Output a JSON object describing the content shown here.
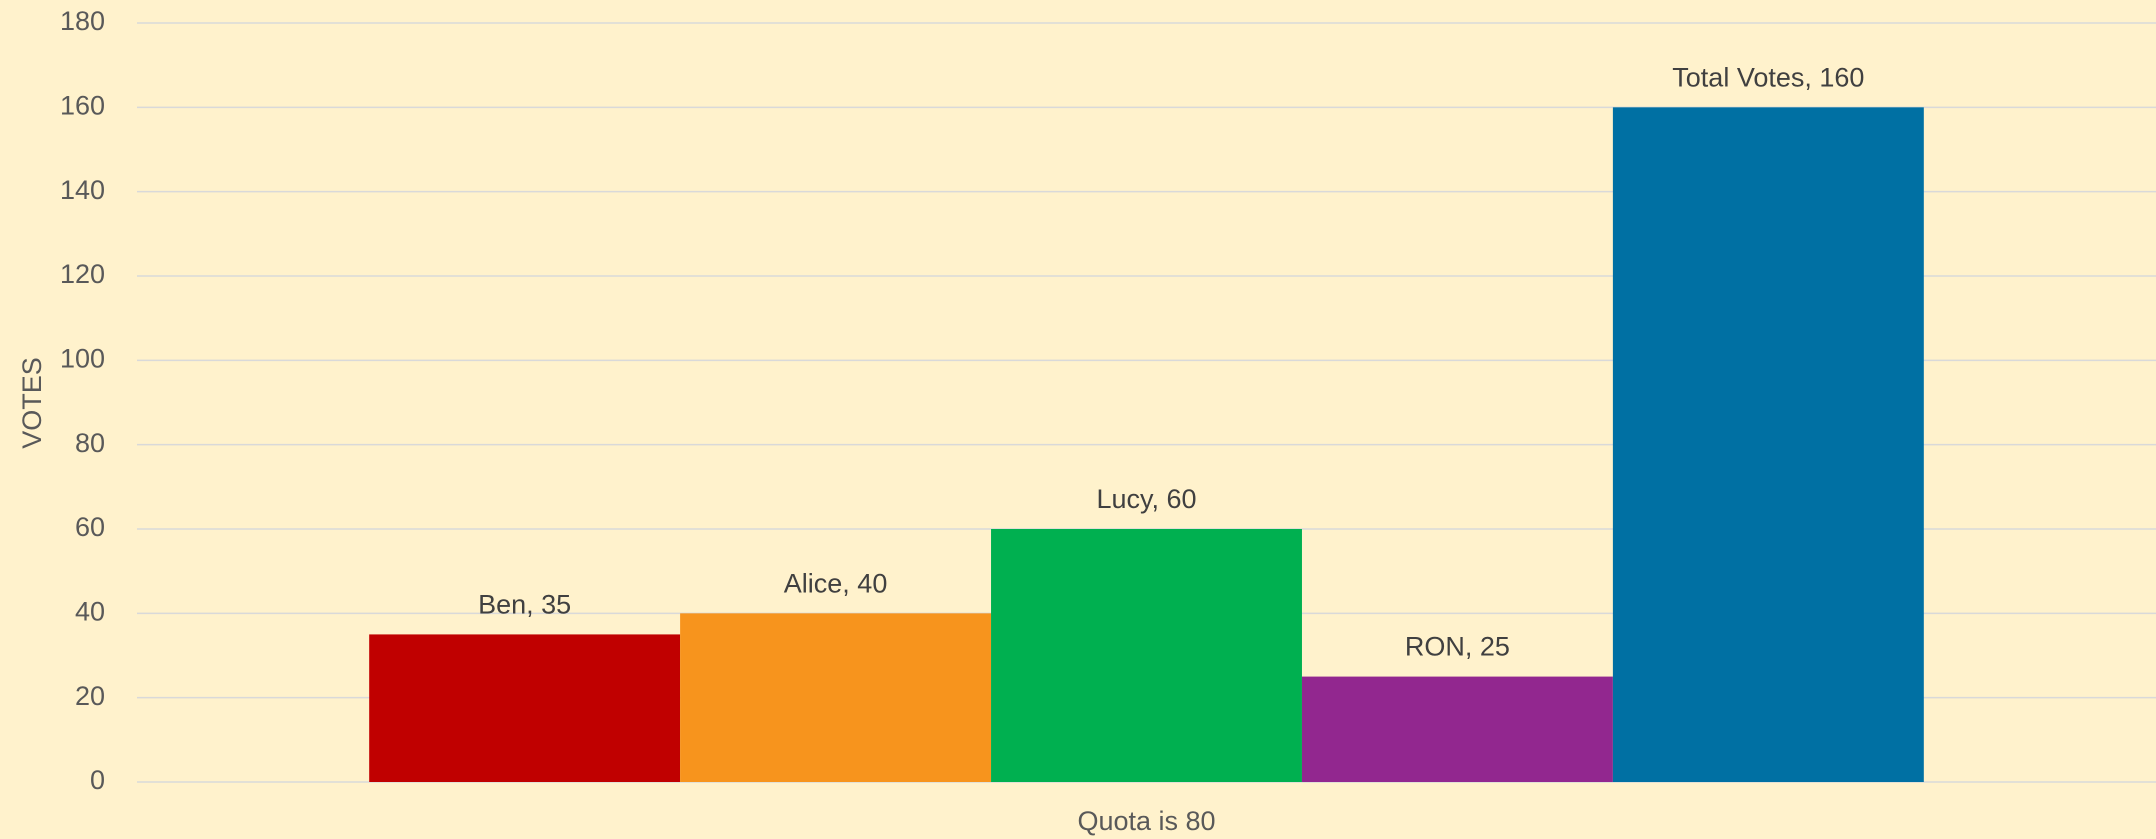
{
  "chart_data": {
    "type": "bar",
    "y_label": "VOTES",
    "categories": [
      "Quota is 80"
    ],
    "series": [
      {
        "color": "#c00000",
        "values": [
          35
        ],
        "value_labels": [
          "Ben, 35"
        ]
      },
      {
        "color": "#f7941d",
        "values": [
          40
        ],
        "value_labels": [
          "Alice, 40"
        ]
      },
      {
        "color": "#00b050",
        "values": [
          60
        ],
        "value_labels": [
          "Lucy, 60"
        ]
      },
      {
        "color": "#92278f",
        "values": [
          25
        ],
        "value_labels": [
          "RON, 25"
        ]
      },
      {
        "color": "#0070a3",
        "values": [
          160
        ],
        "value_labels": [
          "Total Votes, 160"
        ]
      }
    ],
    "ylim": [
      0,
      180
    ],
    "yticks": [
      0,
      20,
      40,
      60,
      80,
      100,
      120,
      140,
      160,
      180
    ],
    "grid": true
  }
}
